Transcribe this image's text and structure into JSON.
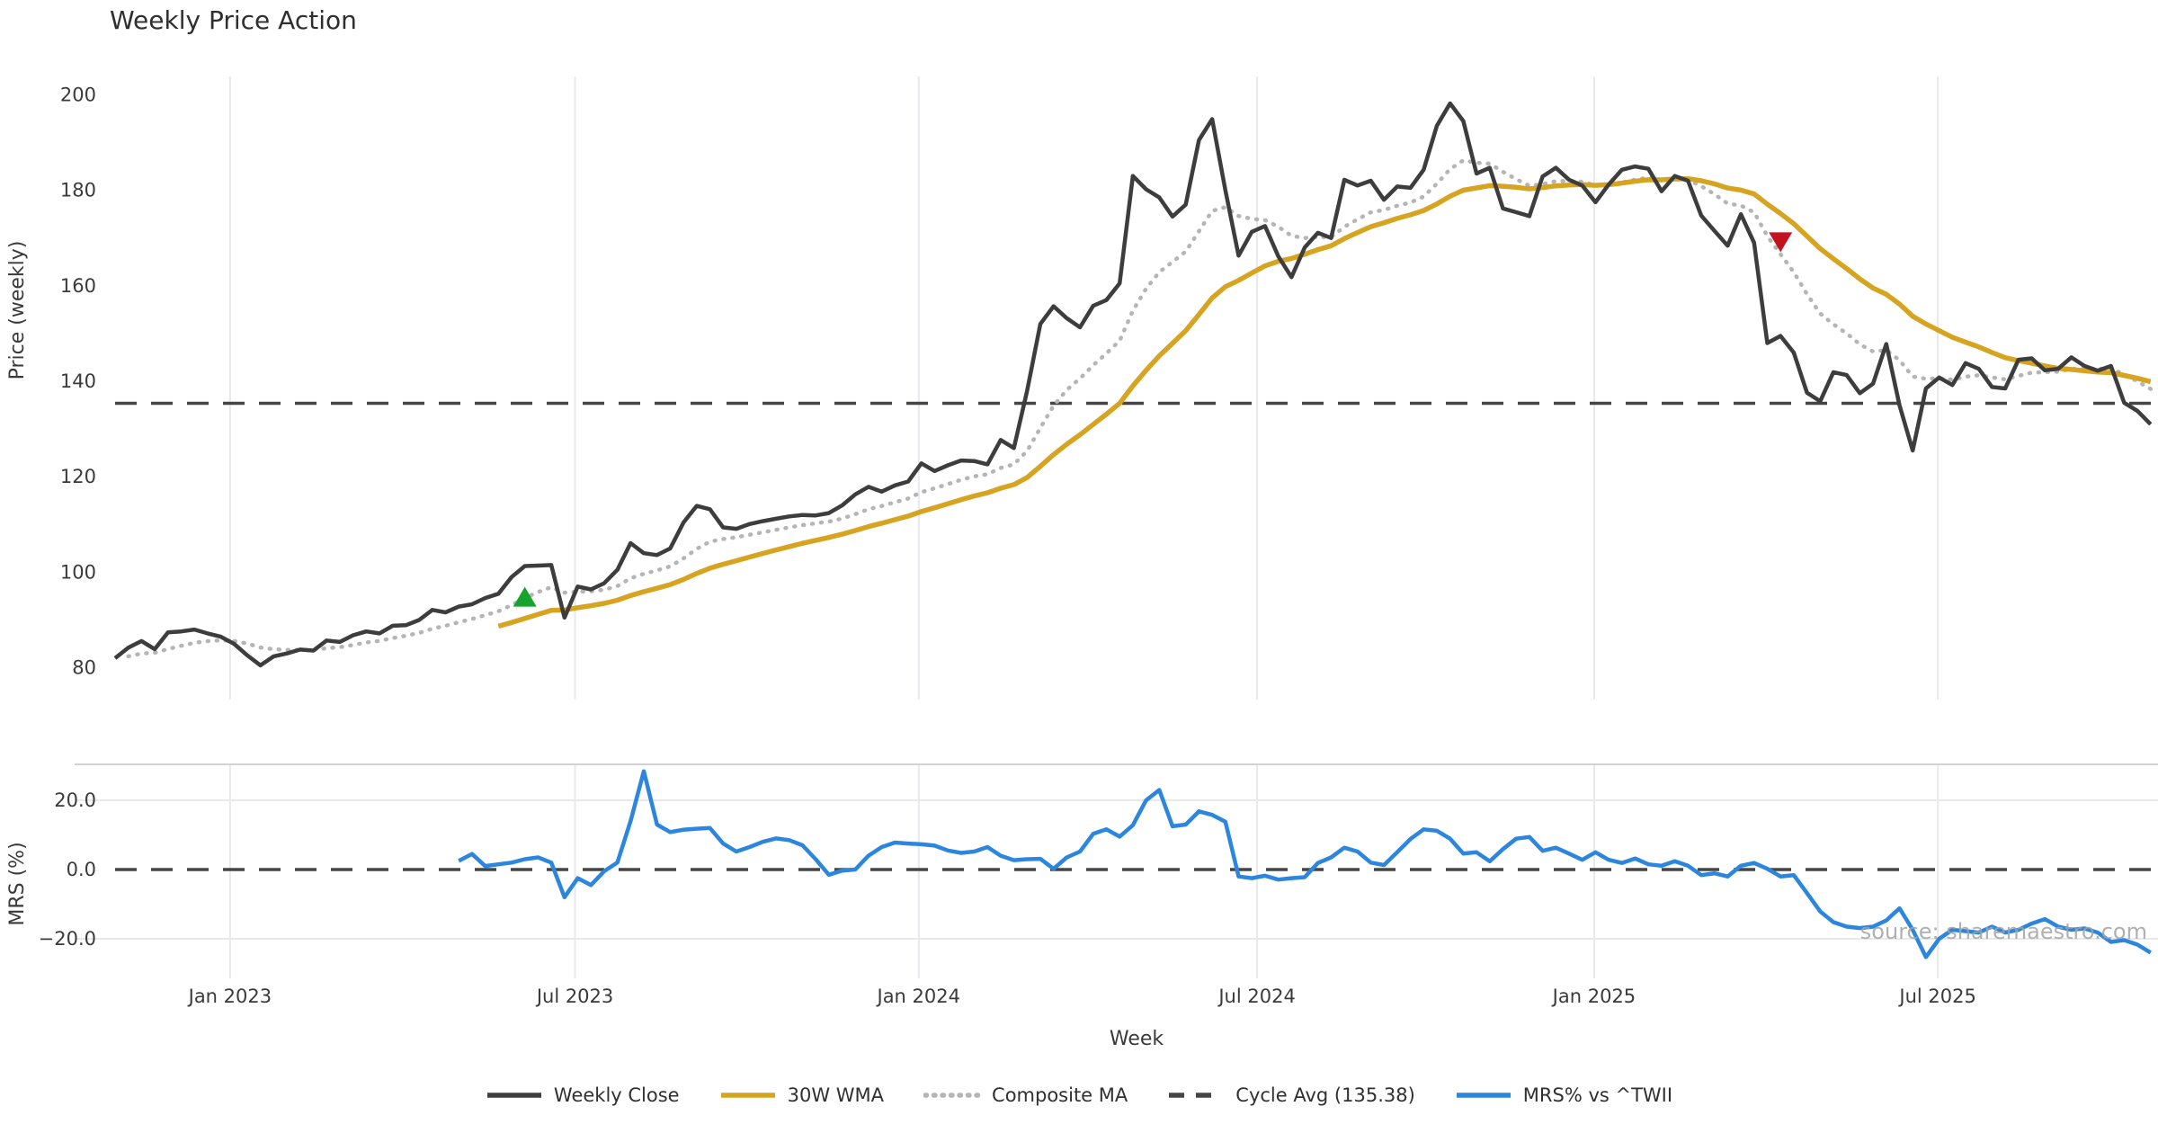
{
  "title": "Weekly Price Action",
  "watermark": "source: sharemaestro.com",
  "colors": {
    "close": "#3d3d3d",
    "wma30": "#d7a422",
    "composite": "#b5b5b5",
    "cycle_avg": "#454545",
    "mrs": "#2c86dd",
    "buy_marker": "#18a22e",
    "sell_marker": "#c3111f",
    "grid": "#e9e9ed",
    "panel_spine": "#d2d2d6",
    "tick_text": "#3a3a3a"
  },
  "legend": [
    {
      "id": "weekly-close",
      "label": "Weekly Close",
      "color": "#3d3d3d",
      "style": "solid"
    },
    {
      "id": "wma30",
      "label": "30W WMA",
      "color": "#d7a422",
      "style": "solid"
    },
    {
      "id": "composite-ma",
      "label": "Composite MA",
      "color": "#b5b5b5",
      "style": "dotted"
    },
    {
      "id": "cycle-avg",
      "label": "Cycle Avg (135.38)",
      "color": "#454545",
      "style": "dashed"
    },
    {
      "id": "mrs",
      "label": "MRS% vs ^TWII",
      "color": "#2c86dd",
      "style": "solid"
    }
  ],
  "chart_data": {
    "type": "line",
    "title": "Weekly Price Action",
    "xlabel": "Week",
    "x_unit": "week_index",
    "n_weeks": 155,
    "x_ticks": [
      {
        "label": "Jan 2023",
        "week": 8.7
      },
      {
        "label": "Jul 2023",
        "week": 34.8
      },
      {
        "label": "Jan 2024",
        "week": 60.8
      },
      {
        "label": "Jul 2024",
        "week": 86.4
      },
      {
        "label": "Jan 2025",
        "week": 111.9
      },
      {
        "label": "Jul 2025",
        "week": 137.9
      }
    ],
    "panels": [
      {
        "name": "price",
        "ylabel": "Price (weekly)",
        "ylim": [
          73,
          204
        ],
        "yticks": [
          200,
          180,
          160,
          140,
          120,
          100,
          80
        ],
        "grid": "vertical-only",
        "cycle_avg": {
          "label": "Cycle Avg (135.38)",
          "value": 135.38,
          "style": "dashed"
        },
        "series": [
          {
            "name": "Weekly Close",
            "style": "solid",
            "color_key": "close",
            "values": [
              82.0,
              84.2,
              85.6,
              83.9,
              87.4,
              87.6,
              88.0,
              87.2,
              86.5,
              85.0,
              82.6,
              80.5,
              82.4,
              83.0,
              83.8,
              83.6,
              85.7,
              85.4,
              86.8,
              87.6,
              87.2,
              88.8,
              88.9,
              90.0,
              92.1,
              91.6,
              92.8,
              93.3,
              94.6,
              95.5,
              99.0,
              101.3,
              101.4,
              101.5,
              90.5,
              97.0,
              96.4,
              97.7,
              100.5,
              106.1,
              104.0,
              103.6,
              105.0,
              110.4,
              113.9,
              113.2,
              109.4,
              109.1,
              110.1,
              110.7,
              111.2,
              111.7,
              112.0,
              111.9,
              112.4,
              114.0,
              116.3,
              117.9,
              116.9,
              118.2,
              119.0,
              122.8,
              121.2,
              122.4,
              123.4,
              123.3,
              122.6,
              127.7,
              126.0,
              138.0,
              152.0,
              155.7,
              153.2,
              151.3,
              155.8,
              157.0,
              160.5,
              183.0,
              180.2,
              178.5,
              174.5,
              177.0,
              190.5,
              194.9,
              180.0,
              166.3,
              171.3,
              172.5,
              166.2,
              161.8,
              168.0,
              171.1,
              170.0,
              182.2,
              181.0,
              182.0,
              178.0,
              180.8,
              180.5,
              184.3,
              193.5,
              198.2,
              194.5,
              183.5,
              184.7,
              176.2,
              175.4,
              174.6,
              182.9,
              184.7,
              182.2,
              181.0,
              177.5,
              181.2,
              184.3,
              185.0,
              184.5,
              179.8,
              183.0,
              182.0,
              174.7,
              171.5,
              168.4,
              175.0,
              169.0,
              148.0,
              149.5,
              146.0,
              137.6,
              135.8,
              141.9,
              141.3,
              137.5,
              139.5,
              147.8,
              135.0,
              125.5,
              138.5,
              140.8,
              139.2,
              143.8,
              142.6,
              138.8,
              138.5,
              144.5,
              144.8,
              142.3,
              142.6,
              145.0,
              143.2,
              142.2,
              143.2,
              135.5,
              133.8,
              131.0
            ]
          },
          {
            "name": "30W WMA",
            "style": "solid",
            "color_key": "wma30",
            "derived_from": "Weekly Close",
            "method": "30-week linearly-weighted moving average",
            "start_week": 29
          },
          {
            "name": "Composite MA",
            "style": "dotted",
            "color_key": "composite",
            "derived_from": "Weekly Close",
            "method": "10-week exponential moving average",
            "start_week": 1
          }
        ],
        "markers": [
          {
            "name": "buy-signal",
            "shape": "triangle-up",
            "color_key": "buy_marker",
            "week": 31,
            "value": 94.5
          },
          {
            "name": "sell-signal",
            "shape": "triangle-down",
            "color_key": "sell_marker",
            "week": 126,
            "value": 169.5
          }
        ]
      },
      {
        "name": "mrs",
        "ylabel": "MRS (%)",
        "ylim": [
          -31.5,
          30.5
        ],
        "yticks_labeled": [
          {
            "label": "20.0",
            "value": 20
          },
          {
            "label": "0.0",
            "value": 0
          },
          {
            "label": "−20.0",
            "value": -20
          }
        ],
        "zero_line": {
          "value": 0,
          "style": "dashed"
        },
        "series": [
          {
            "name": "MRS% vs ^TWII",
            "style": "solid",
            "color_key": "mrs",
            "values": [
              null,
              null,
              null,
              null,
              null,
              null,
              null,
              null,
              null,
              null,
              null,
              null,
              null,
              null,
              null,
              null,
              null,
              null,
              null,
              null,
              null,
              null,
              null,
              null,
              null,
              null,
              2.5,
              4.5,
              1.0,
              1.5,
              2.0,
              3.0,
              3.5,
              2.0,
              -8.0,
              -2.5,
              -4.5,
              -0.5,
              2.0,
              14.0,
              28.4,
              13.0,
              10.8,
              11.5,
              11.8,
              12.0,
              7.5,
              5.2,
              6.5,
              8.0,
              9.0,
              8.5,
              7.0,
              3.0,
              -1.5,
              -0.3,
              0.0,
              4.0,
              6.5,
              7.8,
              7.5,
              7.3,
              6.9,
              5.5,
              4.8,
              5.2,
              6.5,
              4.0,
              2.7,
              3.0,
              3.1,
              0.2,
              3.5,
              5.2,
              10.3,
              11.6,
              9.5,
              12.8,
              20.0,
              23.0,
              12.5,
              13.0,
              16.8,
              15.8,
              13.8,
              -2.0,
              -2.5,
              -1.8,
              -2.9,
              -2.5,
              -2.2,
              1.9,
              3.5,
              6.3,
              5.2,
              2.0,
              1.3,
              5.0,
              8.8,
              11.6,
              11.2,
              8.9,
              4.6,
              5.0,
              2.4,
              5.9,
              8.9,
              9.4,
              5.4,
              6.3,
              4.6,
              2.8,
              5.0,
              2.8,
              1.9,
              3.2,
              1.5,
              1.1,
              2.4,
              1.1,
              -1.6,
              -1.1,
              -2.0,
              1.1,
              1.9,
              0.2,
              -2.0,
              -1.6,
              -6.8,
              -12.1,
              -15.2,
              -16.5,
              -16.9,
              -16.5,
              -14.7,
              -11.2,
              -17.4,
              -25.3,
              -20.0,
              -17.4,
              -17.8,
              -18.2,
              -16.5,
              -18.2,
              -17.4,
              -15.6,
              -14.3,
              -16.5,
              -17.4,
              -17.0,
              -18.2,
              -20.9,
              -20.4,
              -21.7,
              -24.0
            ]
          }
        ]
      }
    ]
  }
}
